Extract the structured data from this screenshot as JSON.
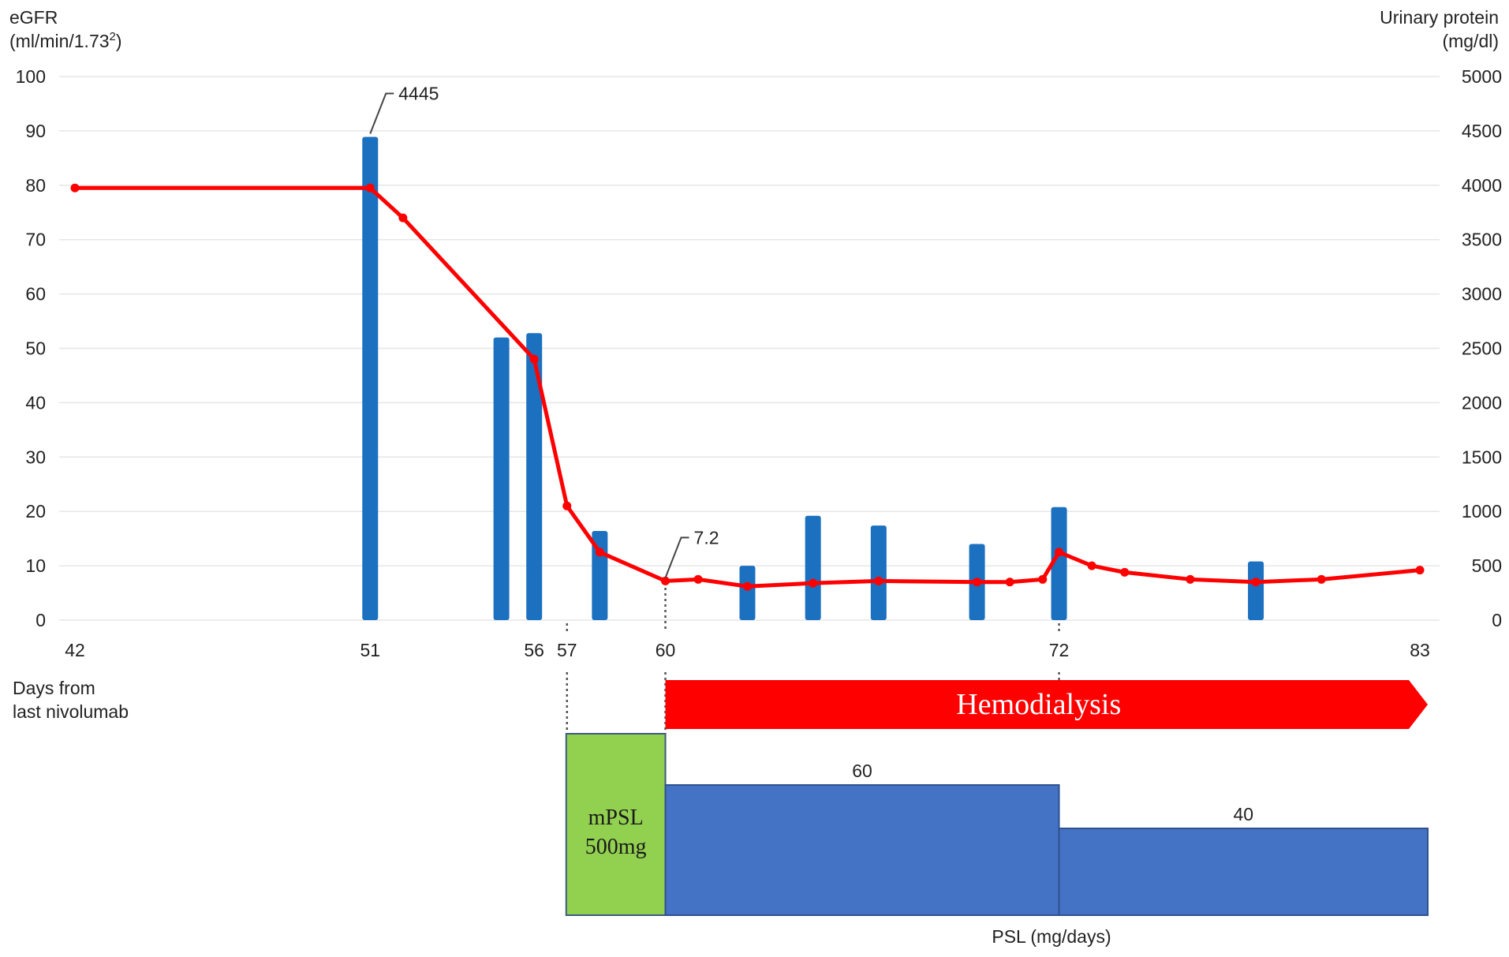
{
  "colors": {
    "egfr_line": "#ff0000",
    "protein_bar": "#1b70c0",
    "hemodialysis": "#ff0000",
    "mpsl_box": "#92d050",
    "psl_box": "#4472c4",
    "grid": "#e6e6e6"
  },
  "chart_data": {
    "type": "bar+line",
    "y_left": {
      "title_line1": "eGFR",
      "title_line2_prefix": "(ml/min/1.73",
      "title_line2_sup": "2",
      "title_line2_suffix": ")",
      "ticks": [
        0,
        10,
        20,
        30,
        40,
        50,
        60,
        70,
        80,
        90,
        100
      ],
      "range": [
        0,
        100
      ]
    },
    "y_right": {
      "title_line1": "Urinary protein",
      "title_line2": "(mg/dl)",
      "ticks": [
        0,
        500,
        1000,
        1500,
        2000,
        2500,
        3000,
        3500,
        4000,
        4500,
        5000
      ],
      "range": [
        0,
        5000
      ]
    },
    "x_axis": {
      "label_line1": "Days from",
      "label_line2": "last nivolumab",
      "range": [
        42,
        83
      ],
      "tick_labels": [
        "42",
        "51",
        "56",
        "57",
        "60",
        "72",
        "83"
      ],
      "tick_values": [
        42,
        51,
        56,
        57,
        60,
        72,
        83
      ]
    },
    "series": [
      {
        "kind": "bar",
        "axis": "right",
        "x": [
          51,
          55,
          56,
          58,
          62.5,
          64.5,
          66.5,
          69.5,
          72,
          78
        ],
        "values": [
          4445,
          2600,
          2640,
          820,
          500,
          960,
          870,
          700,
          1040,
          540
        ]
      },
      {
        "kind": "line",
        "axis": "left",
        "x": [
          42,
          51,
          52,
          56,
          57,
          58,
          60,
          61,
          62.5,
          64.5,
          66.5,
          69.5,
          70.5,
          71.5,
          72,
          73,
          74,
          76,
          78,
          80,
          83
        ],
        "values": [
          79.5,
          79.5,
          74,
          48,
          21,
          12.5,
          7.2,
          7.5,
          6.2,
          6.8,
          7.2,
          7.0,
          7.0,
          7.5,
          12.5,
          10,
          8.8,
          7.5,
          7.0,
          7.5,
          9.2
        ]
      }
    ],
    "annotations": [
      {
        "text": "4445",
        "x": 51,
        "value": 4445,
        "axis": "right"
      },
      {
        "text": "7.2",
        "x": 60,
        "value": 7.2,
        "axis": "left"
      }
    ]
  },
  "treatment": {
    "hemodialysis": {
      "label": "Hemodialysis",
      "start_day": 60,
      "end_day": 83
    },
    "mpsl": {
      "line1": "mPSL",
      "line2": "500mg",
      "start_day": 57,
      "end_day": 60
    },
    "psl": {
      "axis_label": "PSL (mg/days)",
      "segments": [
        {
          "label": "60",
          "dose": 60,
          "start_day": 60,
          "end_day": 72
        },
        {
          "label": "40",
          "dose": 40,
          "start_day": 72,
          "end_day": 83
        }
      ]
    }
  }
}
